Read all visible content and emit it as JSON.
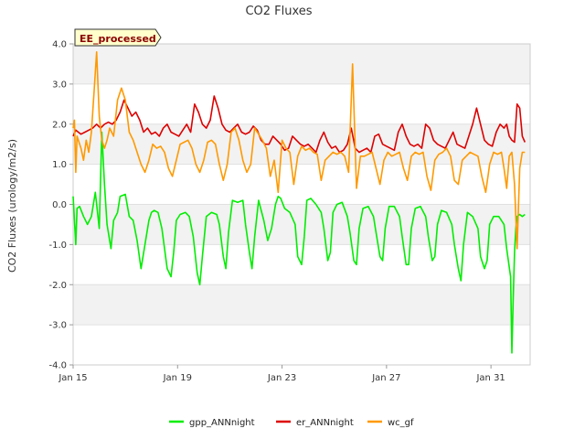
{
  "chart_data": {
    "type": "line",
    "title": "CO2 Fluxes",
    "xlabel": "",
    "ylabel": "CO2 Fluxes (urology/m2/s)",
    "badge": "EE_processed",
    "xlim": [
      15,
      32.5
    ],
    "ylim": [
      -4.0,
      4.0
    ],
    "xticks": [
      {
        "value": 15,
        "label": "Jan 15"
      },
      {
        "value": 19,
        "label": "Jan 19"
      },
      {
        "value": 23,
        "label": "Jan 23"
      },
      {
        "value": 27,
        "label": "Jan 27"
      },
      {
        "value": 31,
        "label": "Jan 31"
      }
    ],
    "yticks": [
      {
        "value": 4.0,
        "label": "4.0"
      },
      {
        "value": 3.0,
        "label": "3.0"
      },
      {
        "value": 2.0,
        "label": "2.0"
      },
      {
        "value": 1.0,
        "label": "1.0"
      },
      {
        "value": 0.0,
        "label": "0.0"
      },
      {
        "value": -1.0,
        "label": "-1.0"
      },
      {
        "value": -2.0,
        "label": "-2.0"
      },
      {
        "value": -3.0,
        "label": "-3.0"
      },
      {
        "value": -4.0,
        "label": "-4.0"
      }
    ],
    "bands": [
      [
        3.0,
        4.0
      ],
      [
        1.0,
        2.0
      ],
      [
        -1.0,
        0.0
      ],
      [
        -3.0,
        -2.0
      ]
    ],
    "series": [
      {
        "name": "gpp_ANNnight",
        "color": "#00ee00",
        "x": [
          15.0,
          15.1,
          15.15,
          15.25,
          15.4,
          15.55,
          15.7,
          15.85,
          16.0,
          16.1,
          16.2,
          16.3,
          16.45,
          16.55,
          16.7,
          16.8,
          17.0,
          17.15,
          17.3,
          17.45,
          17.6,
          17.75,
          17.9,
          18.0,
          18.1,
          18.25,
          18.4,
          18.6,
          18.75,
          18.85,
          18.95,
          19.1,
          19.3,
          19.45,
          19.6,
          19.75,
          19.85,
          19.95,
          20.1,
          20.3,
          20.5,
          20.6,
          20.75,
          20.85,
          20.95,
          21.1,
          21.3,
          21.5,
          21.6,
          21.75,
          21.85,
          21.95,
          22.1,
          22.3,
          22.45,
          22.6,
          22.75,
          22.85,
          22.95,
          23.1,
          23.3,
          23.5,
          23.6,
          23.75,
          23.85,
          23.95,
          24.1,
          24.3,
          24.5,
          24.6,
          24.75,
          24.85,
          24.95,
          25.1,
          25.3,
          25.5,
          25.6,
          25.75,
          25.85,
          25.95,
          26.1,
          26.3,
          26.5,
          26.6,
          26.75,
          26.85,
          26.95,
          27.1,
          27.3,
          27.5,
          27.6,
          27.75,
          27.85,
          27.95,
          28.1,
          28.3,
          28.5,
          28.6,
          28.75,
          28.85,
          28.95,
          29.1,
          29.3,
          29.5,
          29.6,
          29.75,
          29.85,
          29.95,
          30.1,
          30.3,
          30.5,
          30.6,
          30.75,
          30.85,
          30.95,
          31.1,
          31.3,
          31.5,
          31.6,
          31.75,
          31.8,
          31.85,
          31.9,
          31.95,
          32.0,
          32.1,
          32.2,
          32.3
        ],
        "y": [
          0.2,
          -1.0,
          -0.1,
          -0.05,
          -0.3,
          -0.5,
          -0.3,
          0.3,
          -0.6,
          1.8,
          0.5,
          -0.5,
          -1.1,
          -0.4,
          -0.2,
          0.2,
          0.25,
          -0.3,
          -0.4,
          -0.9,
          -1.6,
          -1.0,
          -0.4,
          -0.2,
          -0.15,
          -0.2,
          -0.6,
          -1.6,
          -1.8,
          -1.2,
          -0.4,
          -0.25,
          -0.2,
          -0.3,
          -0.8,
          -1.7,
          -2.0,
          -1.3,
          -0.3,
          -0.2,
          -0.25,
          -0.5,
          -1.3,
          -1.6,
          -0.7,
          0.1,
          0.05,
          0.1,
          -0.5,
          -1.2,
          -1.6,
          -0.8,
          0.1,
          -0.4,
          -0.9,
          -0.6,
          0.0,
          0.2,
          0.15,
          -0.1,
          -0.2,
          -0.5,
          -1.3,
          -1.5,
          -0.8,
          0.1,
          0.15,
          0.0,
          -0.2,
          -0.6,
          -1.4,
          -1.2,
          -0.2,
          0.0,
          0.05,
          -0.3,
          -0.7,
          -1.4,
          -1.5,
          -0.6,
          -0.1,
          -0.05,
          -0.3,
          -0.7,
          -1.3,
          -1.4,
          -0.6,
          -0.05,
          -0.05,
          -0.3,
          -0.8,
          -1.5,
          -1.5,
          -0.6,
          -0.1,
          -0.05,
          -0.3,
          -0.8,
          -1.4,
          -1.3,
          -0.5,
          -0.15,
          -0.2,
          -0.5,
          -1.0,
          -1.6,
          -1.9,
          -1.0,
          -0.2,
          -0.3,
          -0.6,
          -1.3,
          -1.6,
          -1.4,
          -0.5,
          -0.3,
          -0.3,
          -0.5,
          -1.1,
          -1.8,
          -3.7,
          -2.4,
          -1.2,
          -0.6,
          -0.3,
          -0.25,
          -0.3,
          -0.25
        ]
      },
      {
        "name": "er_ANNnight",
        "color": "#dd0000",
        "x": [
          15.0,
          15.1,
          15.2,
          15.3,
          15.45,
          15.6,
          15.75,
          15.9,
          16.05,
          16.2,
          16.35,
          16.5,
          16.65,
          16.8,
          16.95,
          17.1,
          17.25,
          17.4,
          17.55,
          17.7,
          17.85,
          18.0,
          18.15,
          18.3,
          18.45,
          18.6,
          18.75,
          18.9,
          19.05,
          19.2,
          19.35,
          19.5,
          19.65,
          19.8,
          19.95,
          20.1,
          20.25,
          20.4,
          20.55,
          20.7,
          20.85,
          21.0,
          21.15,
          21.3,
          21.45,
          21.6,
          21.75,
          21.9,
          22.05,
          22.2,
          22.35,
          22.5,
          22.65,
          22.8,
          22.95,
          23.1,
          23.25,
          23.4,
          23.55,
          23.7,
          23.85,
          24.0,
          24.15,
          24.3,
          24.45,
          24.6,
          24.75,
          24.9,
          25.05,
          25.2,
          25.35,
          25.5,
          25.65,
          25.8,
          25.95,
          26.1,
          26.25,
          26.4,
          26.55,
          26.7,
          26.85,
          27.0,
          27.15,
          27.3,
          27.45,
          27.6,
          27.75,
          27.9,
          28.05,
          28.2,
          28.35,
          28.5,
          28.65,
          28.8,
          28.95,
          29.1,
          29.25,
          29.4,
          29.55,
          29.7,
          29.85,
          30.0,
          30.15,
          30.3,
          30.45,
          30.6,
          30.75,
          30.9,
          31.05,
          31.2,
          31.35,
          31.5,
          31.6,
          31.7,
          31.8,
          31.9,
          32.0,
          32.1,
          32.2,
          32.3
        ],
        "y": [
          1.7,
          1.85,
          1.8,
          1.75,
          1.8,
          1.85,
          1.9,
          2.0,
          1.9,
          2.0,
          2.05,
          2.0,
          2.1,
          2.3,
          2.6,
          2.4,
          2.2,
          2.3,
          2.1,
          1.8,
          1.9,
          1.75,
          1.8,
          1.7,
          1.9,
          2.0,
          1.8,
          1.75,
          1.7,
          1.85,
          2.0,
          1.8,
          2.5,
          2.3,
          2.0,
          1.9,
          2.1,
          2.7,
          2.4,
          2.0,
          1.85,
          1.8,
          1.9,
          2.0,
          1.8,
          1.75,
          1.8,
          1.95,
          1.85,
          1.6,
          1.5,
          1.5,
          1.7,
          1.6,
          1.5,
          1.35,
          1.4,
          1.7,
          1.6,
          1.5,
          1.45,
          1.5,
          1.4,
          1.3,
          1.6,
          1.8,
          1.55,
          1.4,
          1.45,
          1.3,
          1.35,
          1.5,
          1.9,
          1.4,
          1.3,
          1.35,
          1.4,
          1.3,
          1.7,
          1.75,
          1.5,
          1.45,
          1.4,
          1.35,
          1.8,
          2.0,
          1.7,
          1.5,
          1.45,
          1.5,
          1.4,
          2.0,
          1.9,
          1.6,
          1.5,
          1.45,
          1.4,
          1.6,
          1.8,
          1.5,
          1.45,
          1.4,
          1.7,
          2.0,
          2.4,
          2.0,
          1.6,
          1.5,
          1.45,
          1.8,
          2.0,
          1.9,
          2.0,
          1.7,
          1.6,
          1.55,
          2.5,
          2.4,
          1.7,
          1.55
        ]
      },
      {
        "name": "wc_gf",
        "color": "#ff9900",
        "x": [
          15.0,
          15.05,
          15.1,
          15.15,
          15.2,
          15.3,
          15.4,
          15.5,
          15.6,
          15.7,
          15.8,
          15.9,
          16.0,
          16.1,
          16.2,
          16.3,
          16.4,
          16.55,
          16.7,
          16.85,
          17.0,
          17.15,
          17.3,
          17.45,
          17.6,
          17.75,
          17.9,
          18.05,
          18.2,
          18.35,
          18.5,
          18.65,
          18.8,
          18.95,
          19.1,
          19.25,
          19.4,
          19.55,
          19.7,
          19.85,
          20.0,
          20.15,
          20.3,
          20.45,
          20.6,
          20.75,
          20.9,
          21.05,
          21.2,
          21.35,
          21.5,
          21.65,
          21.8,
          21.95,
          22.1,
          22.25,
          22.4,
          22.55,
          22.7,
          22.85,
          23.0,
          23.15,
          23.3,
          23.45,
          23.6,
          23.75,
          23.9,
          24.05,
          24.2,
          24.35,
          24.5,
          24.65,
          24.8,
          24.95,
          25.1,
          25.25,
          25.4,
          25.55,
          25.7,
          25.85,
          26.0,
          26.15,
          26.3,
          26.45,
          26.6,
          26.75,
          26.9,
          27.05,
          27.2,
          27.35,
          27.5,
          27.65,
          27.8,
          27.95,
          28.1,
          28.25,
          28.4,
          28.55,
          28.7,
          28.85,
          29.0,
          29.15,
          29.3,
          29.45,
          29.6,
          29.75,
          29.9,
          30.05,
          30.2,
          30.35,
          30.5,
          30.65,
          30.8,
          30.95,
          31.1,
          31.25,
          31.4,
          31.5,
          31.6,
          31.7,
          31.8,
          31.9,
          32.0,
          32.1,
          32.2,
          32.3
        ],
        "y": [
          1.9,
          2.1,
          0.8,
          1.7,
          1.6,
          1.4,
          1.1,
          1.6,
          1.3,
          1.8,
          2.8,
          3.8,
          2.2,
          1.6,
          1.4,
          1.6,
          1.9,
          1.7,
          2.6,
          2.9,
          2.6,
          1.8,
          1.6,
          1.3,
          1.0,
          0.8,
          1.1,
          1.5,
          1.4,
          1.45,
          1.3,
          0.9,
          0.7,
          1.1,
          1.5,
          1.55,
          1.6,
          1.4,
          1.0,
          0.8,
          1.1,
          1.55,
          1.6,
          1.5,
          1.0,
          0.6,
          1.0,
          1.8,
          1.9,
          1.6,
          1.1,
          0.8,
          1.0,
          1.9,
          1.75,
          1.6,
          1.4,
          0.7,
          1.1,
          0.3,
          1.6,
          1.4,
          1.3,
          0.5,
          1.2,
          1.45,
          1.35,
          1.4,
          1.3,
          1.25,
          0.6,
          1.1,
          1.2,
          1.3,
          1.25,
          1.3,
          1.2,
          0.8,
          3.5,
          0.4,
          1.2,
          1.2,
          1.25,
          1.3,
          0.9,
          0.5,
          1.1,
          1.3,
          1.2,
          1.25,
          1.3,
          0.9,
          0.6,
          1.2,
          1.3,
          1.25,
          1.3,
          0.7,
          0.35,
          1.1,
          1.25,
          1.3,
          1.4,
          1.2,
          0.6,
          0.5,
          1.1,
          1.2,
          1.3,
          1.25,
          1.2,
          0.7,
          0.3,
          1.0,
          1.3,
          1.25,
          1.3,
          0.9,
          0.4,
          1.2,
          1.3,
          0.5,
          -1.1,
          0.9,
          1.3,
          1.3
        ]
      }
    ],
    "legend_position": "bottom-center"
  }
}
